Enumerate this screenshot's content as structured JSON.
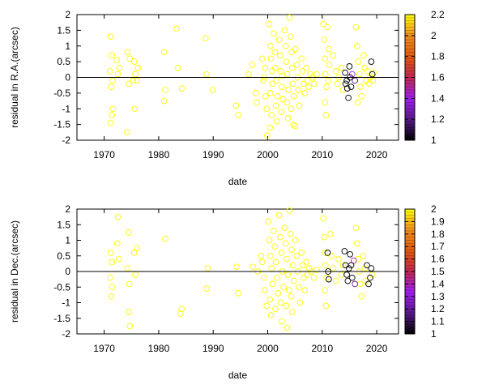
{
  "chart_data": [
    {
      "type": "scatter",
      "title": "",
      "xlabel": "date",
      "ylabel": "residual in R.A.(arcsec)",
      "xlim": [
        1965,
        2024
      ],
      "ylim": [
        -2,
        2
      ],
      "xticks": [
        "1970",
        "1980",
        "1990",
        "2000",
        "2010",
        "2020"
      ],
      "yticks": [
        "-2",
        "-1.5",
        "-1",
        "-0.5",
        "0",
        "0.5",
        "1",
        "1.5",
        "2"
      ],
      "zero_line": true,
      "grid": false,
      "colorbar": {
        "range": [
          1,
          2.2
        ],
        "ticks": [
          "1",
          "1.2",
          "1.4",
          "1.6",
          "1.8",
          "2",
          "2.2"
        ],
        "palette": [
          "#000000",
          "#5a1a8a",
          "#a020f0",
          "#c02850",
          "#e05a10",
          "#f09020",
          "#ffff00"
        ]
      },
      "points": [
        [
          1971.2,
          1.3,
          2.2
        ],
        [
          1971.4,
          0.7,
          2.2
        ],
        [
          1971.1,
          0.2,
          2.2
        ],
        [
          1971.5,
          -0.1,
          2.2
        ],
        [
          1971.3,
          -0.3,
          2.2
        ],
        [
          1971.6,
          -1.0,
          2.2
        ],
        [
          1971.2,
          -1.45,
          2.2
        ],
        [
          1971.4,
          -1.2,
          2.2
        ],
        [
          1972.3,
          0.55,
          2.2
        ],
        [
          1972.8,
          0.3,
          2.2
        ],
        [
          1972.5,
          0.1,
          2.2
        ],
        [
          1974.3,
          0.8,
          2.2
        ],
        [
          1974.7,
          0.6,
          2.2
        ],
        [
          1974.5,
          -0.2,
          2.2
        ],
        [
          1974.2,
          -1.75,
          2.2
        ],
        [
          1975.5,
          0.5,
          2.2
        ],
        [
          1975.7,
          0.1,
          2.2
        ],
        [
          1975.3,
          -0.1,
          2.2
        ],
        [
          1975.6,
          -1.0,
          2.2
        ],
        [
          1976.2,
          0.3,
          2.2
        ],
        [
          1976.0,
          -0.1,
          2.2
        ],
        [
          1981.0,
          0.8,
          2.2
        ],
        [
          1981.2,
          -0.4,
          2.2
        ],
        [
          1981.0,
          -0.75,
          2.2
        ],
        [
          1983.3,
          1.55,
          2.2
        ],
        [
          1983.5,
          0.3,
          2.2
        ],
        [
          1984.3,
          -0.35,
          2.2
        ],
        [
          1988.6,
          1.25,
          2.2
        ],
        [
          1988.8,
          0.1,
          2.2
        ],
        [
          1989.9,
          -0.4,
          2.2
        ],
        [
          1994.2,
          -0.9,
          2.2
        ],
        [
          1994.6,
          -1.2,
          2.2
        ],
        [
          1996.5,
          0.1,
          2.2
        ],
        [
          1997.2,
          0.4,
          2.2
        ],
        [
          1997.8,
          -0.5,
          2.2
        ],
        [
          1998.0,
          -0.8,
          2.2
        ],
        [
          1999.0,
          0.6,
          2.2
        ],
        [
          1999.2,
          -0.1,
          2.2
        ],
        [
          1999.5,
          0.3,
          2.2
        ],
        [
          1999.6,
          -0.6,
          2.2
        ],
        [
          1999.8,
          -1.0,
          2.2
        ],
        [
          1999.9,
          -1.85,
          2.2
        ],
        [
          1999.4,
          0.0,
          2.2
        ],
        [
          2000.3,
          1.7,
          2.2
        ],
        [
          2000.5,
          1.0,
          2.2
        ],
        [
          2000.6,
          0.6,
          2.2
        ],
        [
          2000.8,
          0.2,
          2.2
        ],
        [
          2000.9,
          -0.2,
          2.2
        ],
        [
          2000.5,
          -0.5,
          2.2
        ],
        [
          2000.7,
          -1.2,
          2.2
        ],
        [
          2000.4,
          -1.6,
          2.2
        ],
        [
          2001.1,
          1.4,
          2.2
        ],
        [
          2001.3,
          0.8,
          2.2
        ],
        [
          2001.4,
          0.3,
          2.2
        ],
        [
          2001.6,
          -0.1,
          2.2
        ],
        [
          2001.8,
          -0.6,
          2.2
        ],
        [
          2001.5,
          -0.9,
          2.2
        ],
        [
          2001.7,
          -1.4,
          2.2
        ],
        [
          2002.1,
          1.2,
          2.2
        ],
        [
          2002.3,
          0.7,
          2.2
        ],
        [
          2002.4,
          0.2,
          2.2
        ],
        [
          2002.6,
          -0.3,
          2.2
        ],
        [
          2002.8,
          -0.7,
          2.2
        ],
        [
          2002.5,
          -1.1,
          2.2
        ],
        [
          2002.7,
          0.05,
          2.2
        ],
        [
          2003.1,
          1.5,
          2.2
        ],
        [
          2003.3,
          1.0,
          2.2
        ],
        [
          2003.4,
          0.5,
          2.2
        ],
        [
          2003.6,
          0.1,
          2.2
        ],
        [
          2003.8,
          -0.4,
          2.2
        ],
        [
          2003.5,
          -0.8,
          2.2
        ],
        [
          2003.7,
          -1.3,
          2.2
        ],
        [
          2004.0,
          1.9,
          2.2
        ],
        [
          2004.2,
          1.3,
          2.2
        ],
        [
          2004.4,
          0.8,
          2.2
        ],
        [
          2004.5,
          0.3,
          2.2
        ],
        [
          2004.6,
          -0.2,
          2.2
        ],
        [
          2004.8,
          -0.6,
          2.2
        ],
        [
          2004.3,
          -1.0,
          2.2
        ],
        [
          2004.7,
          -1.5,
          2.2
        ],
        [
          2005.0,
          -1.55,
          2.2
        ],
        [
          2005.1,
          0.9,
          2.2
        ],
        [
          2005.3,
          0.4,
          2.2
        ],
        [
          2005.5,
          0.0,
          2.2
        ],
        [
          2005.6,
          -0.4,
          2.2
        ],
        [
          2005.8,
          -0.9,
          2.2
        ],
        [
          2006.2,
          0.6,
          2.2
        ],
        [
          2006.4,
          0.2,
          2.2
        ],
        [
          2006.6,
          -0.2,
          2.2
        ],
        [
          2006.8,
          -0.5,
          2.2
        ],
        [
          2007.1,
          0.3,
          2.2
        ],
        [
          2007.3,
          -0.1,
          2.2
        ],
        [
          2007.5,
          -0.3,
          2.2
        ],
        [
          2007.8,
          0.1,
          2.2
        ],
        [
          2008.2,
          0.0,
          2.2
        ],
        [
          2008.5,
          -0.2,
          2.2
        ],
        [
          2009.0,
          0.1,
          2.2
        ],
        [
          2010.2,
          1.7,
          2.2
        ],
        [
          2010.4,
          1.2,
          2.2
        ],
        [
          2010.5,
          0.6,
          2.2
        ],
        [
          2010.6,
          0.1,
          2.2
        ],
        [
          2010.8,
          -0.3,
          2.2
        ],
        [
          2010.5,
          -0.8,
          2.2
        ],
        [
          2010.7,
          -1.2,
          2.2
        ],
        [
          2011.0,
          1.6,
          2.2
        ],
        [
          2011.2,
          0.9,
          2.2
        ],
        [
          2011.3,
          0.4,
          2.2
        ],
        [
          2011.1,
          -0.1,
          2.2
        ],
        [
          2012.0,
          0.7,
          2.2
        ],
        [
          2012.5,
          0.2,
          2.2
        ],
        [
          2012.8,
          -0.2,
          2.2
        ],
        [
          2013.0,
          0.0,
          2.2
        ],
        [
          2013.5,
          0.3,
          2.2
        ],
        [
          2013.8,
          -0.4,
          2.2
        ],
        [
          2014.2,
          0.15,
          1.0
        ],
        [
          2014.5,
          -0.1,
          1.0
        ],
        [
          2014.6,
          -0.35,
          1.0
        ],
        [
          2014.8,
          -0.65,
          1.0
        ],
        [
          2014.3,
          -0.2,
          1.0
        ],
        [
          2015.0,
          0.35,
          1.0
        ],
        [
          2015.1,
          0.0,
          1.0
        ],
        [
          2015.3,
          -0.3,
          1.0
        ],
        [
          2015.5,
          0.1,
          1.4
        ],
        [
          2016.0,
          -0.1,
          1.2
        ],
        [
          2016.2,
          1.6,
          2.2
        ],
        [
          2016.4,
          1.0,
          2.2
        ],
        [
          2016.6,
          0.5,
          2.2
        ],
        [
          2016.8,
          0.1,
          2.2
        ],
        [
          2017.0,
          -0.3,
          2.2
        ],
        [
          2017.2,
          -0.6,
          2.2
        ],
        [
          2016.5,
          -0.8,
          2.2
        ],
        [
          2017.6,
          0.7,
          2.2
        ],
        [
          2017.8,
          0.3,
          2.2
        ],
        [
          2018.0,
          -0.1,
          2.2
        ],
        [
          2018.3,
          0.2,
          2.2
        ],
        [
          2018.6,
          -0.2,
          2.2
        ],
        [
          2018.8,
          0.0,
          2.2
        ],
        [
          2019.0,
          0.5,
          1.0
        ],
        [
          2019.2,
          0.1,
          1.0
        ],
        [
          2019.3,
          -0.1,
          2.2
        ],
        [
          2019.5,
          0.15,
          2.2
        ]
      ]
    },
    {
      "type": "scatter",
      "title": "",
      "xlabel": "date",
      "ylabel": "residual in Dec.(arcsec)",
      "xlim": [
        1965,
        2024
      ],
      "ylim": [
        -2,
        2
      ],
      "xticks": [
        "1970",
        "1980",
        "1990",
        "2000",
        "2010",
        "2020"
      ],
      "yticks": [
        "-2",
        "-1.5",
        "-1",
        "-0.5",
        "0",
        "0.5",
        "1",
        "1.5",
        "2"
      ],
      "zero_line": true,
      "grid": false,
      "colorbar": {
        "range": [
          1,
          2
        ],
        "ticks": [
          "1",
          "1.1",
          "1.2",
          "1.3",
          "1.4",
          "1.5",
          "1.6",
          "1.7",
          "1.8",
          "1.9",
          "2"
        ],
        "palette": [
          "#000000",
          "#5a1a8a",
          "#a020f0",
          "#c02850",
          "#e05a10",
          "#f09020",
          "#ffff00"
        ]
      },
      "points": [
        [
          1971.2,
          0.6,
          2.0
        ],
        [
          1971.4,
          0.3,
          2.0
        ],
        [
          1971.1,
          -0.2,
          2.0
        ],
        [
          1971.5,
          -0.5,
          2.0
        ],
        [
          1971.3,
          -0.8,
          2.0
        ],
        [
          1972.5,
          1.75,
          2.0
        ],
        [
          1972.4,
          0.9,
          2.0
        ],
        [
          1972.7,
          0.4,
          2.0
        ],
        [
          1974.5,
          1.25,
          2.0
        ],
        [
          1974.3,
          0.1,
          2.0
        ],
        [
          1974.6,
          -0.4,
          2.0
        ],
        [
          1974.5,
          -1.3,
          2.0
        ],
        [
          1974.7,
          -1.75,
          2.0
        ],
        [
          1975.5,
          0.6,
          2.0
        ],
        [
          1975.7,
          -0.1,
          2.0
        ],
        [
          1976.0,
          0.75,
          2.0
        ],
        [
          1981.2,
          1.05,
          2.0
        ],
        [
          1984.2,
          -1.2,
          2.0
        ],
        [
          1984.0,
          -1.35,
          2.0
        ],
        [
          1988.8,
          -0.55,
          2.0
        ],
        [
          1989.0,
          0.1,
          2.0
        ],
        [
          1994.3,
          0.15,
          2.0
        ],
        [
          1994.6,
          -0.7,
          2.0
        ],
        [
          1997.3,
          0.15,
          2.0
        ],
        [
          1998.2,
          0.0,
          2.0
        ],
        [
          1998.8,
          0.5,
          2.0
        ],
        [
          1999.0,
          0.3,
          2.0
        ],
        [
          1999.3,
          -0.2,
          2.0
        ],
        [
          1999.5,
          -0.6,
          2.0
        ],
        [
          1999.8,
          -1.1,
          2.0
        ],
        [
          2000.1,
          1.6,
          2.0
        ],
        [
          2000.3,
          1.0,
          2.0
        ],
        [
          2000.5,
          0.5,
          2.0
        ],
        [
          2000.7,
          0.1,
          2.0
        ],
        [
          2000.9,
          -0.4,
          2.0
        ],
        [
          2000.4,
          -0.9,
          2.0
        ],
        [
          2000.6,
          -1.4,
          2.0
        ],
        [
          2001.1,
          1.3,
          2.0
        ],
        [
          2001.3,
          0.8,
          2.0
        ],
        [
          2001.5,
          0.3,
          2.0
        ],
        [
          2001.7,
          -0.2,
          2.0
        ],
        [
          2001.9,
          -0.7,
          2.0
        ],
        [
          2001.4,
          -1.2,
          2.0
        ],
        [
          2002.1,
          1.8,
          2.0
        ],
        [
          2002.3,
          1.1,
          2.0
        ],
        [
          2002.5,
          0.6,
          2.0
        ],
        [
          2002.7,
          0.0,
          2.0
        ],
        [
          2002.9,
          -0.5,
          2.0
        ],
        [
          2002.4,
          -1.0,
          2.0
        ],
        [
          2002.6,
          -1.6,
          2.0
        ],
        [
          2003.1,
          1.4,
          2.0
        ],
        [
          2003.3,
          0.9,
          2.0
        ],
        [
          2003.5,
          0.4,
          2.0
        ],
        [
          2003.7,
          -0.1,
          2.0
        ],
        [
          2003.9,
          -0.6,
          2.0
        ],
        [
          2003.4,
          -1.1,
          2.0
        ],
        [
          2003.6,
          -1.8,
          2.0
        ],
        [
          2004.0,
          1.95,
          2.0
        ],
        [
          2004.2,
          1.2,
          2.0
        ],
        [
          2004.4,
          0.7,
          2.0
        ],
        [
          2004.6,
          0.2,
          2.0
        ],
        [
          2004.8,
          -0.3,
          2.0
        ],
        [
          2004.3,
          -0.8,
          2.0
        ],
        [
          2004.5,
          -1.3,
          2.0
        ],
        [
          2005.1,
          1.0,
          2.0
        ],
        [
          2005.3,
          0.5,
          2.0
        ],
        [
          2005.5,
          0.0,
          2.0
        ],
        [
          2005.7,
          -0.5,
          2.0
        ],
        [
          2005.9,
          -1.0,
          2.0
        ],
        [
          2006.2,
          0.6,
          2.0
        ],
        [
          2006.4,
          0.2,
          2.0
        ],
        [
          2006.6,
          -0.2,
          2.0
        ],
        [
          2006.8,
          -0.6,
          2.0
        ],
        [
          2007.1,
          0.3,
          2.0
        ],
        [
          2007.3,
          -0.1,
          2.0
        ],
        [
          2007.6,
          0.1,
          2.0
        ],
        [
          2008.0,
          0.0,
          2.0
        ],
        [
          2008.5,
          -0.2,
          2.0
        ],
        [
          2009.0,
          0.05,
          2.0
        ],
        [
          2010.2,
          1.7,
          2.0
        ],
        [
          2010.4,
          1.1,
          2.0
        ],
        [
          2010.5,
          0.6,
          2.0
        ],
        [
          2010.6,
          0.2,
          2.0
        ],
        [
          2010.8,
          -0.2,
          2.0
        ],
        [
          2010.5,
          -0.6,
          2.0
        ],
        [
          2010.7,
          -1.1,
          2.0
        ],
        [
          2011.0,
          0.6,
          1.0
        ],
        [
          2011.1,
          0.0,
          1.0
        ],
        [
          2011.2,
          -0.25,
          1.0
        ],
        [
          2011.5,
          1.2,
          2.0
        ],
        [
          2011.7,
          0.5,
          2.0
        ],
        [
          2012.0,
          0.1,
          2.0
        ],
        [
          2012.5,
          -0.3,
          2.0
        ],
        [
          2013.0,
          0.4,
          2.0
        ],
        [
          2013.5,
          -0.1,
          2.0
        ],
        [
          2013.8,
          0.2,
          2.0
        ],
        [
          2014.1,
          0.65,
          1.0
        ],
        [
          2014.3,
          0.2,
          1.0
        ],
        [
          2014.5,
          -0.1,
          1.0
        ],
        [
          2014.7,
          -0.3,
          1.0
        ],
        [
          2014.9,
          0.1,
          1.0
        ],
        [
          2015.1,
          0.55,
          1.0
        ],
        [
          2015.3,
          0.2,
          1.0
        ],
        [
          2015.5,
          -0.2,
          1.0
        ],
        [
          2015.8,
          0.35,
          1.4
        ],
        [
          2016.0,
          -0.4,
          1.2
        ],
        [
          2016.2,
          1.4,
          2.0
        ],
        [
          2016.4,
          0.9,
          2.0
        ],
        [
          2016.6,
          0.4,
          2.0
        ],
        [
          2016.8,
          0.0,
          2.0
        ],
        [
          2017.0,
          -0.4,
          2.0
        ],
        [
          2017.2,
          -0.8,
          2.0
        ],
        [
          2017.5,
          0.5,
          2.0
        ],
        [
          2017.8,
          0.1,
          2.0
        ],
        [
          2018.0,
          -0.3,
          2.0
        ],
        [
          2018.2,
          0.2,
          1.0
        ],
        [
          2018.5,
          -0.4,
          1.0
        ],
        [
          2018.8,
          -0.2,
          1.0
        ],
        [
          2019.0,
          0.1,
          1.0
        ],
        [
          2019.2,
          -0.1,
          2.0
        ]
      ]
    }
  ]
}
